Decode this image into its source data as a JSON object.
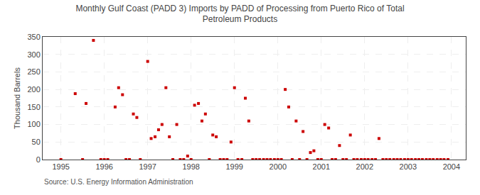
{
  "chart_data": {
    "type": "scatter",
    "title": "Monthly Gulf Coast (PADD 3) Imports by PADD of Processing from Puerto Rico of Total\nPetroleum Products",
    "ylabel": "Thousand Barrels",
    "annotations": [
      "Source: U.S. Energy Information Administration"
    ],
    "color": "#cc0000",
    "marker": "square",
    "grid": true,
    "xlim": [
      1994.58,
      2004.33
    ],
    "ylim": [
      0,
      350
    ],
    "xticks": [
      1995,
      1996,
      1997,
      1998,
      1999,
      2000,
      2001,
      2002,
      2003,
      2004
    ],
    "yticks": [
      0,
      50,
      100,
      150,
      200,
      250,
      300,
      350
    ],
    "x": [
      1995.0,
      1995.33,
      1995.5,
      1995.58,
      1995.75,
      1995.92,
      1996.0,
      1996.08,
      1996.25,
      1996.33,
      1996.42,
      1996.5,
      1996.58,
      1996.67,
      1996.75,
      1996.83,
      1997.0,
      1997.08,
      1997.17,
      1997.25,
      1997.33,
      1997.42,
      1997.5,
      1997.58,
      1997.67,
      1997.75,
      1997.83,
      1997.92,
      1998.0,
      1998.08,
      1998.17,
      1998.25,
      1998.33,
      1998.42,
      1998.5,
      1998.58,
      1998.67,
      1998.75,
      1998.83,
      1998.92,
      1999.0,
      1999.08,
      1999.17,
      1999.25,
      1999.33,
      1999.42,
      1999.5,
      1999.58,
      1999.67,
      1999.75,
      1999.83,
      1999.92,
      2000.0,
      2000.08,
      2000.17,
      2000.25,
      2000.33,
      2000.42,
      2000.5,
      2000.58,
      2000.67,
      2000.75,
      2000.83,
      2000.92,
      2001.0,
      2001.08,
      2001.17,
      2001.25,
      2001.33,
      2001.42,
      2001.5,
      2001.58,
      2001.67,
      2001.75,
      2001.83,
      2001.92,
      2002.0,
      2002.08,
      2002.17,
      2002.25,
      2002.33,
      2002.42,
      2002.5,
      2002.58,
      2002.67,
      2002.75,
      2002.83,
      2002.92,
      2003.0,
      2003.08,
      2003.17,
      2003.25,
      2003.33,
      2003.42,
      2003.5,
      2003.58,
      2003.67,
      2003.75,
      2003.83,
      2003.92
    ],
    "values": [
      0,
      188,
      0,
      160,
      340,
      0,
      0,
      0,
      150,
      205,
      185,
      0,
      0,
      130,
      120,
      0,
      280,
      60,
      65,
      85,
      100,
      205,
      65,
      0,
      100,
      0,
      0,
      10,
      0,
      155,
      160,
      110,
      130,
      0,
      70,
      65,
      0,
      0,
      0,
      50,
      205,
      0,
      0,
      175,
      110,
      0,
      0,
      0,
      0,
      0,
      0,
      0,
      0,
      0,
      200,
      150,
      0,
      110,
      0,
      80,
      0,
      20,
      25,
      0,
      0,
      100,
      90,
      0,
      0,
      40,
      0,
      0,
      70,
      0,
      0,
      0,
      0,
      0,
      0,
      0,
      60,
      0,
      0,
      0,
      0,
      0,
      0,
      0,
      0,
      0,
      0,
      0,
      0,
      0,
      0,
      0,
      0,
      0,
      0,
      0
    ]
  }
}
